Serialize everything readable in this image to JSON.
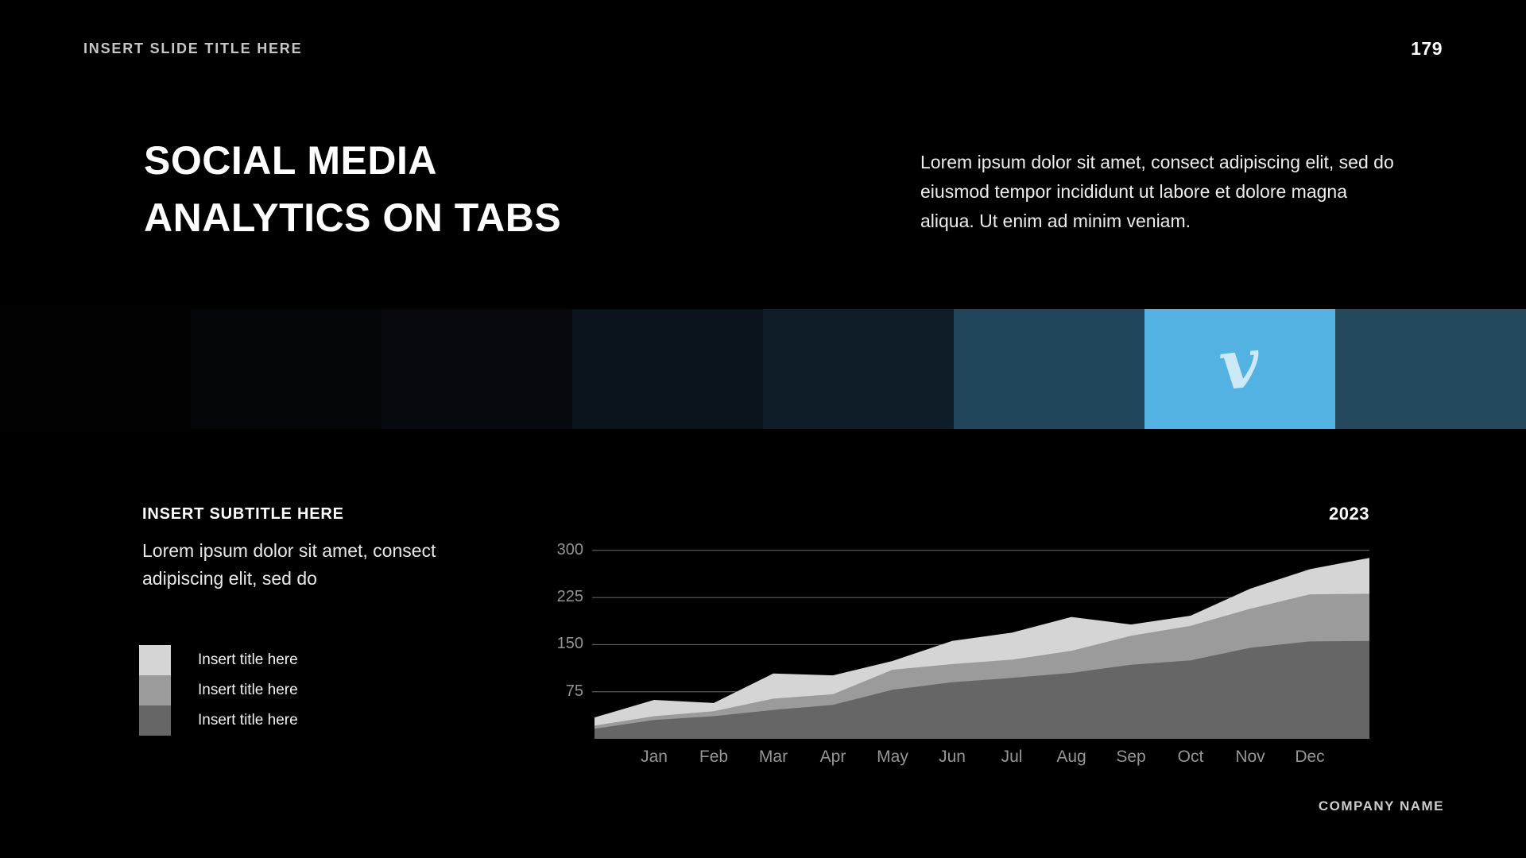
{
  "header": {
    "slide_title": "INSERT SLIDE TITLE HERE",
    "page_number": "179"
  },
  "main": {
    "title": "SOCIAL MEDIA ANALYTICS ON TABS",
    "intro": "Lorem ipsum dolor sit amet, consect adipiscing elit, sed do eiusmod tempor incididunt ut labore et dolore magna aliqua. Ut enim ad minim veniam."
  },
  "tabs": {
    "active_color": "#54b2e2",
    "items": [
      {
        "id": "tab-1",
        "color": "#020203",
        "icon": null,
        "active": false
      },
      {
        "id": "tab-2",
        "color": "#04060a",
        "icon": null,
        "active": false
      },
      {
        "id": "tab-3",
        "color": "#060a0e",
        "icon": null,
        "active": false
      },
      {
        "id": "tab-4",
        "color": "#0b141c",
        "icon": null,
        "active": false
      },
      {
        "id": "tab-5",
        "color": "#0e1d28",
        "icon": null,
        "active": false
      },
      {
        "id": "tab-6",
        "color": "#20455a",
        "icon": null,
        "active": false
      },
      {
        "id": "tab-vimeo",
        "color": "#54b2e2",
        "icon": "vimeo-icon",
        "icon_glyph": "v",
        "icon_color": "#cde9f7",
        "active": true
      },
      {
        "id": "tab-8",
        "color": "#25495c",
        "icon": null,
        "active": false
      }
    ]
  },
  "section": {
    "subtitle": "INSERT SUBTITLE HERE",
    "description": "Lorem ipsum dolor sit amet, consect adipiscing elit, sed do",
    "year": "2023",
    "legend": [
      {
        "label": "Insert title here",
        "color": "#d5d5d5"
      },
      {
        "label": "Insert title here",
        "color": "#9b9b9b"
      },
      {
        "label": "Insert title here",
        "color": "#666666"
      }
    ]
  },
  "footer": {
    "company": "COMPANY NAME"
  },
  "chart_data": {
    "type": "area",
    "stacked": true,
    "title": "",
    "xlabel": "",
    "ylabel": "",
    "year": "2023",
    "x_labels": [
      "",
      "Jan",
      "Feb",
      "Mar",
      "Apr",
      "May",
      "Jun",
      "Jul",
      "Aug",
      "Sep",
      "Oct",
      "Nov",
      "Dec",
      ""
    ],
    "y_ticks": [
      75,
      150,
      225,
      300
    ],
    "ylim": [
      0,
      300
    ],
    "grid": true,
    "gridline_color": "#6e6e6e",
    "tick_color": "#949494",
    "series": [
      {
        "name": "Insert title here",
        "color": "#666666",
        "values": [
          16,
          30,
          36,
          46,
          54,
          78,
          90,
          97,
          105,
          118,
          125,
          145,
          155,
          156
        ]
      },
      {
        "name": "Insert title here",
        "color": "#9b9b9b",
        "values": [
          5,
          6,
          8,
          18,
          17,
          32,
          29,
          29,
          35,
          46,
          55,
          62,
          75,
          75
        ]
      },
      {
        "name": "Insert title here",
        "color": "#d5d5d5",
        "values": [
          13,
          26,
          13,
          40,
          30,
          14,
          37,
          43,
          54,
          18,
          16,
          32,
          40,
          57
        ]
      }
    ]
  }
}
